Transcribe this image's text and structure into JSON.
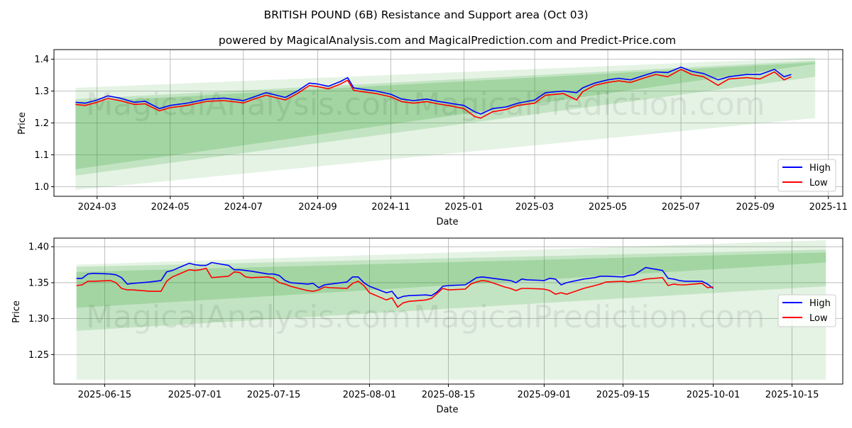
{
  "figure": {
    "title": "BRITISH POUND (6B) Resistance and Support area (Oct 03)",
    "subtitle": "powered by MagicalAnalysis.com and MagicalPrediction.com and Predict-Price.com",
    "watermarks": [
      "MagicalAnalysis.com",
      "MagicalPrediction.com"
    ]
  },
  "colors": {
    "high": "#0000ff",
    "low": "#ff0000",
    "band": "#2ca02c",
    "grid": "#b0b0b0"
  },
  "chart_data": [
    {
      "type": "line",
      "name": "full-history",
      "xlabel": "Date",
      "ylabel": "Price",
      "xlim": [
        "2024-01-25",
        "2025-11-13"
      ],
      "ylim": [
        0.97,
        1.43
      ],
      "x_ticks": [
        "2024-03",
        "2024-05",
        "2024-07",
        "2024-09",
        "2024-11",
        "2025-01",
        "2025-03",
        "2025-05",
        "2025-07",
        "2025-09",
        "2025-11"
      ],
      "x_tick_dates": [
        "2024-03-01",
        "2024-05-01",
        "2024-07-01",
        "2024-09-01",
        "2024-11-01",
        "2025-01-01",
        "2025-03-01",
        "2025-05-01",
        "2025-07-01",
        "2025-09-01",
        "2025-11-01"
      ],
      "y_ticks": [
        "1.0",
        "1.1",
        "1.2",
        "1.3",
        "1.4"
      ],
      "y_tick_values": [
        1.0,
        1.1,
        1.2,
        1.3,
        1.4
      ],
      "grid": true,
      "legend": {
        "position": "lower-right",
        "entries": [
          "High",
          "Low"
        ]
      },
      "bands": [
        {
          "x": [
            "2024-02-12",
            "2025-10-21"
          ],
          "upper": [
            1.31,
            1.405
          ],
          "lower": [
            0.99,
            1.215
          ]
        },
        {
          "x": [
            "2024-02-12",
            "2025-10-21"
          ],
          "upper": [
            1.275,
            1.395
          ],
          "lower": [
            1.035,
            1.345
          ]
        },
        {
          "x": [
            "2024-02-12",
            "2025-10-21"
          ],
          "upper": [
            1.265,
            1.39
          ],
          "lower": [
            1.055,
            1.385
          ]
        }
      ],
      "series": [
        {
          "name": "High",
          "x": [
            "2024-02-12",
            "2024-02-20",
            "2024-03-01",
            "2024-03-10",
            "2024-03-20",
            "2024-04-01",
            "2024-04-10",
            "2024-04-22",
            "2024-05-01",
            "2024-05-15",
            "2024-06-01",
            "2024-06-15",
            "2024-07-01",
            "2024-07-10",
            "2024-07-20",
            "2024-08-05",
            "2024-08-15",
            "2024-08-25",
            "2024-09-01",
            "2024-09-10",
            "2024-09-20",
            "2024-09-26",
            "2024-10-01",
            "2024-10-10",
            "2024-10-20",
            "2024-11-01",
            "2024-11-10",
            "2024-11-20",
            "2024-12-01",
            "2024-12-10",
            "2024-12-20",
            "2025-01-01",
            "2025-01-10",
            "2025-01-15",
            "2025-01-25",
            "2025-02-05",
            "2025-02-15",
            "2025-03-01",
            "2025-03-10",
            "2025-03-25",
            "2025-04-05",
            "2025-04-10",
            "2025-04-20",
            "2025-05-01",
            "2025-05-10",
            "2025-05-20",
            "2025-06-01",
            "2025-06-10",
            "2025-06-20",
            "2025-07-01",
            "2025-07-10",
            "2025-07-20",
            "2025-08-01",
            "2025-08-10",
            "2025-08-25",
            "2025-09-05",
            "2025-09-17",
            "2025-09-25",
            "2025-10-01"
          ],
          "values": [
            1.265,
            1.262,
            1.272,
            1.285,
            1.278,
            1.265,
            1.268,
            1.245,
            1.255,
            1.262,
            1.275,
            1.278,
            1.27,
            1.282,
            1.295,
            1.28,
            1.3,
            1.325,
            1.322,
            1.315,
            1.33,
            1.342,
            1.31,
            1.305,
            1.3,
            1.29,
            1.275,
            1.27,
            1.275,
            1.268,
            1.262,
            1.255,
            1.235,
            1.228,
            1.245,
            1.25,
            1.262,
            1.272,
            1.295,
            1.3,
            1.295,
            1.31,
            1.325,
            1.335,
            1.34,
            1.335,
            1.35,
            1.36,
            1.358,
            1.375,
            1.362,
            1.355,
            1.335,
            1.345,
            1.352,
            1.352,
            1.368,
            1.345,
            1.352
          ]
        },
        {
          "name": "Low",
          "x": [
            "2024-02-12",
            "2024-02-20",
            "2024-03-01",
            "2024-03-10",
            "2024-03-20",
            "2024-04-01",
            "2024-04-10",
            "2024-04-22",
            "2024-05-01",
            "2024-05-15",
            "2024-06-01",
            "2024-06-15",
            "2024-07-01",
            "2024-07-10",
            "2024-07-20",
            "2024-08-05",
            "2024-08-15",
            "2024-08-25",
            "2024-09-01",
            "2024-09-10",
            "2024-09-20",
            "2024-09-26",
            "2024-10-01",
            "2024-10-10",
            "2024-10-20",
            "2024-11-01",
            "2024-11-10",
            "2024-11-20",
            "2024-12-01",
            "2024-12-10",
            "2024-12-20",
            "2025-01-01",
            "2025-01-10",
            "2025-01-15",
            "2025-01-25",
            "2025-02-05",
            "2025-02-15",
            "2025-03-01",
            "2025-03-10",
            "2025-03-25",
            "2025-04-05",
            "2025-04-10",
            "2025-04-20",
            "2025-05-01",
            "2025-05-10",
            "2025-05-20",
            "2025-06-01",
            "2025-06-10",
            "2025-06-20",
            "2025-07-01",
            "2025-07-10",
            "2025-07-20",
            "2025-08-01",
            "2025-08-10",
            "2025-08-25",
            "2025-09-05",
            "2025-09-17",
            "2025-09-25",
            "2025-10-01"
          ],
          "values": [
            1.258,
            1.255,
            1.265,
            1.277,
            1.27,
            1.258,
            1.26,
            1.238,
            1.248,
            1.255,
            1.268,
            1.27,
            1.263,
            1.275,
            1.287,
            1.272,
            1.292,
            1.317,
            1.314,
            1.307,
            1.322,
            1.334,
            1.302,
            1.297,
            1.292,
            1.282,
            1.267,
            1.262,
            1.267,
            1.26,
            1.254,
            1.245,
            1.22,
            1.215,
            1.235,
            1.242,
            1.255,
            1.262,
            1.287,
            1.292,
            1.272,
            1.298,
            1.318,
            1.327,
            1.332,
            1.327,
            1.342,
            1.352,
            1.345,
            1.368,
            1.352,
            1.345,
            1.318,
            1.338,
            1.342,
            1.338,
            1.36,
            1.335,
            1.345
          ]
        }
      ]
    },
    {
      "type": "line",
      "name": "recent-zoom",
      "xlabel": "Date",
      "ylabel": "Price",
      "xlim": [
        "2025-06-06",
        "2025-10-24"
      ],
      "ylim": [
        1.209,
        1.412
      ],
      "x_ticks": [
        "2025-06-15",
        "2025-07-01",
        "2025-07-15",
        "2025-08-01",
        "2025-08-15",
        "2025-09-01",
        "2025-09-15",
        "2025-10-01",
        "2025-10-15"
      ],
      "x_tick_dates": [
        "2025-06-15",
        "2025-07-01",
        "2025-07-15",
        "2025-08-01",
        "2025-08-15",
        "2025-09-01",
        "2025-09-15",
        "2025-10-01",
        "2025-10-15"
      ],
      "y_ticks": [
        "1.25",
        "1.30",
        "1.35",
        "1.40"
      ],
      "y_tick_values": [
        1.25,
        1.3,
        1.35,
        1.4
      ],
      "grid": true,
      "legend": {
        "position": "center-right",
        "entries": [
          "High",
          "Low"
        ]
      },
      "bands": [
        {
          "x": [
            "2025-06-10",
            "2025-10-21"
          ],
          "upper": [
            1.375,
            1.409
          ],
          "lower": [
            1.215,
            1.215
          ]
        },
        {
          "x": [
            "2025-06-10",
            "2025-10-21"
          ],
          "upper": [
            1.372,
            1.396
          ],
          "lower": [
            1.283,
            1.345
          ]
        },
        {
          "x": [
            "2025-06-10",
            "2025-10-21"
          ],
          "upper": [
            1.365,
            1.392
          ],
          "lower": [
            1.315,
            1.378
          ]
        }
      ],
      "series": [
        {
          "name": "High",
          "x": [
            "2025-06-10",
            "2025-06-11",
            "2025-06-12",
            "2025-06-13",
            "2025-06-16",
            "2025-06-17",
            "2025-06-18",
            "2025-06-19",
            "2025-06-20",
            "2025-06-23",
            "2025-06-24",
            "2025-06-25",
            "2025-06-26",
            "2025-06-27",
            "2025-06-30",
            "2025-07-01",
            "2025-07-02",
            "2025-07-03",
            "2025-07-04",
            "2025-07-07",
            "2025-07-08",
            "2025-07-09",
            "2025-07-10",
            "2025-07-11",
            "2025-07-14",
            "2025-07-15",
            "2025-07-16",
            "2025-07-17",
            "2025-07-18",
            "2025-07-21",
            "2025-07-22",
            "2025-07-23",
            "2025-07-24",
            "2025-07-25",
            "2025-07-28",
            "2025-07-29",
            "2025-07-30",
            "2025-07-31",
            "2025-08-01",
            "2025-08-04",
            "2025-08-05",
            "2025-08-06",
            "2025-08-07",
            "2025-08-08",
            "2025-08-11",
            "2025-08-12",
            "2025-08-13",
            "2025-08-14",
            "2025-08-15",
            "2025-08-18",
            "2025-08-19",
            "2025-08-20",
            "2025-08-21",
            "2025-08-22",
            "2025-08-25",
            "2025-08-26",
            "2025-08-27",
            "2025-08-28",
            "2025-08-29",
            "2025-09-01",
            "2025-09-02",
            "2025-09-03",
            "2025-09-04",
            "2025-09-05",
            "2025-09-08",
            "2025-09-09",
            "2025-09-10",
            "2025-09-11",
            "2025-09-12",
            "2025-09-15",
            "2025-09-16",
            "2025-09-17",
            "2025-09-18",
            "2025-09-19",
            "2025-09-22",
            "2025-09-23",
            "2025-09-24",
            "2025-09-25",
            "2025-09-26",
            "2025-09-29",
            "2025-09-30",
            "2025-10-01"
          ],
          "values": [
            1.356,
            1.356,
            1.362,
            1.363,
            1.362,
            1.361,
            1.357,
            1.348,
            1.349,
            1.351,
            1.352,
            1.353,
            1.365,
            1.367,
            1.377,
            1.375,
            1.374,
            1.374,
            1.378,
            1.374,
            1.368,
            1.368,
            1.367,
            1.366,
            1.362,
            1.362,
            1.36,
            1.353,
            1.35,
            1.348,
            1.349,
            1.343,
            1.347,
            1.348,
            1.351,
            1.358,
            1.358,
            1.35,
            1.345,
            1.336,
            1.338,
            1.328,
            1.331,
            1.332,
            1.333,
            1.332,
            1.337,
            1.345,
            1.346,
            1.347,
            1.352,
            1.357,
            1.358,
            1.357,
            1.354,
            1.353,
            1.35,
            1.355,
            1.354,
            1.353,
            1.356,
            1.355,
            1.347,
            1.35,
            1.355,
            1.356,
            1.357,
            1.359,
            1.359,
            1.358,
            1.36,
            1.361,
            1.366,
            1.371,
            1.367,
            1.356,
            1.355,
            1.353,
            1.352,
            1.352,
            1.348,
            1.342
          ]
        },
        {
          "name": "Low",
          "x": [
            "2025-06-10",
            "2025-06-11",
            "2025-06-12",
            "2025-06-13",
            "2025-06-16",
            "2025-06-17",
            "2025-06-18",
            "2025-06-19",
            "2025-06-20",
            "2025-06-23",
            "2025-06-24",
            "2025-06-25",
            "2025-06-26",
            "2025-06-27",
            "2025-06-30",
            "2025-07-01",
            "2025-07-02",
            "2025-07-03",
            "2025-07-04",
            "2025-07-07",
            "2025-07-08",
            "2025-07-09",
            "2025-07-10",
            "2025-07-11",
            "2025-07-14",
            "2025-07-15",
            "2025-07-16",
            "2025-07-17",
            "2025-07-18",
            "2025-07-21",
            "2025-07-22",
            "2025-07-23",
            "2025-07-24",
            "2025-07-25",
            "2025-07-28",
            "2025-07-29",
            "2025-07-30",
            "2025-07-31",
            "2025-08-01",
            "2025-08-04",
            "2025-08-05",
            "2025-08-06",
            "2025-08-07",
            "2025-08-08",
            "2025-08-11",
            "2025-08-12",
            "2025-08-13",
            "2025-08-14",
            "2025-08-15",
            "2025-08-18",
            "2025-08-19",
            "2025-08-20",
            "2025-08-21",
            "2025-08-22",
            "2025-08-25",
            "2025-08-26",
            "2025-08-27",
            "2025-08-28",
            "2025-08-29",
            "2025-09-01",
            "2025-09-02",
            "2025-09-03",
            "2025-09-04",
            "2025-09-05",
            "2025-09-08",
            "2025-09-09",
            "2025-09-10",
            "2025-09-11",
            "2025-09-12",
            "2025-09-15",
            "2025-09-16",
            "2025-09-17",
            "2025-09-18",
            "2025-09-19",
            "2025-09-22",
            "2025-09-23",
            "2025-09-24",
            "2025-09-25",
            "2025-09-26",
            "2025-09-29",
            "2025-09-30",
            "2025-10-01"
          ],
          "values": [
            1.346,
            1.347,
            1.352,
            1.352,
            1.353,
            1.35,
            1.342,
            1.34,
            1.34,
            1.338,
            1.338,
            1.338,
            1.352,
            1.358,
            1.368,
            1.367,
            1.368,
            1.37,
            1.357,
            1.359,
            1.365,
            1.364,
            1.358,
            1.357,
            1.358,
            1.356,
            1.35,
            1.348,
            1.345,
            1.339,
            1.338,
            1.34,
            1.344,
            1.343,
            1.342,
            1.349,
            1.352,
            1.346,
            1.336,
            1.326,
            1.329,
            1.316,
            1.322,
            1.324,
            1.326,
            1.328,
            1.335,
            1.342,
            1.34,
            1.341,
            1.348,
            1.351,
            1.353,
            1.352,
            1.344,
            1.342,
            1.339,
            1.342,
            1.342,
            1.341,
            1.339,
            1.334,
            1.336,
            1.334,
            1.342,
            1.344,
            1.346,
            1.348,
            1.351,
            1.352,
            1.351,
            1.352,
            1.353,
            1.355,
            1.357,
            1.346,
            1.348,
            1.347,
            1.347,
            1.349,
            1.343,
            1.344
          ]
        }
      ]
    }
  ]
}
